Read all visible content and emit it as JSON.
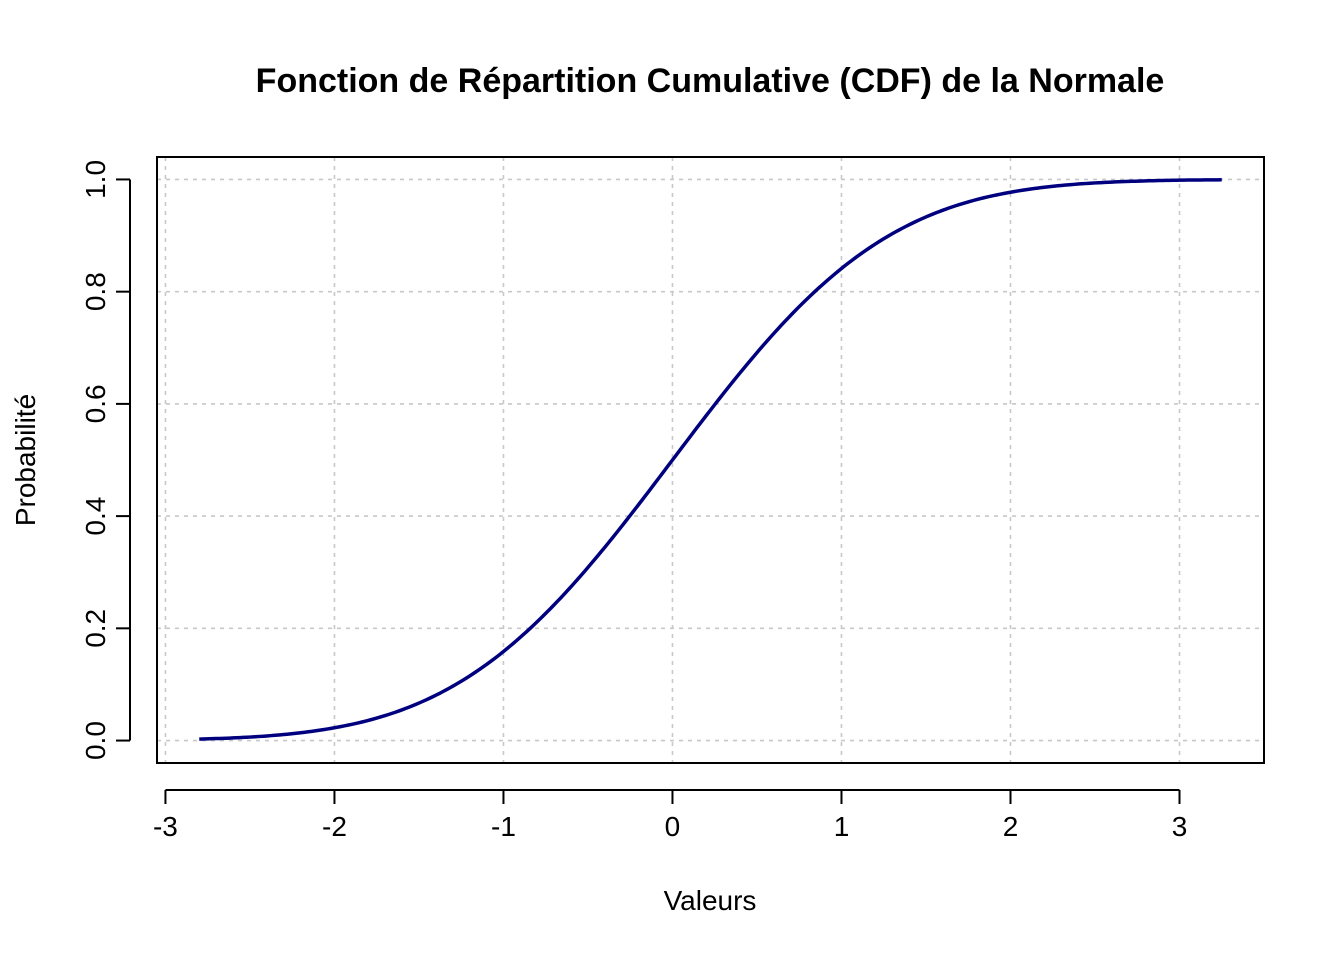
{
  "chart_data": {
    "type": "line",
    "title": "Fonction de Répartition Cumulative (CDF) de la Normale",
    "xlabel": "Valeurs",
    "ylabel": "Probabilité",
    "xlim": [
      -3.05,
      3.5
    ],
    "ylim": [
      -0.04,
      1.04
    ],
    "x_ticks": [
      -3,
      -2,
      -1,
      0,
      1,
      2,
      3
    ],
    "x_tick_labels": [
      "-3",
      "-2",
      "-1",
      "0",
      "1",
      "2",
      "3"
    ],
    "y_ticks": [
      0.0,
      0.2,
      0.4,
      0.6,
      0.8,
      1.0
    ],
    "y_tick_labels": [
      "0.0",
      "0.2",
      "0.4",
      "0.6",
      "0.8",
      "1.0"
    ],
    "grid": true,
    "series": [
      {
        "color": "#00007f",
        "x": [
          -2.8,
          -2.6,
          -2.4,
          -2.2,
          -2.0,
          -1.8,
          -1.6,
          -1.4,
          -1.2,
          -1.0,
          -0.8,
          -0.6,
          -0.4,
          -0.2,
          0.0,
          0.2,
          0.4,
          0.6,
          0.8,
          1.0,
          1.2,
          1.4,
          1.6,
          1.8,
          2.0,
          2.2,
          2.4,
          2.6,
          2.8,
          3.0,
          3.25
        ],
        "y": [
          0.0026,
          0.0047,
          0.0082,
          0.0139,
          0.0228,
          0.0359,
          0.0548,
          0.0808,
          0.1151,
          0.1587,
          0.2119,
          0.2743,
          0.3446,
          0.4207,
          0.5,
          0.5793,
          0.6554,
          0.7257,
          0.7881,
          0.8413,
          0.8849,
          0.9192,
          0.9452,
          0.9641,
          0.9772,
          0.9861,
          0.9918,
          0.9953,
          0.9974,
          0.9987,
          0.9994
        ]
      }
    ]
  }
}
